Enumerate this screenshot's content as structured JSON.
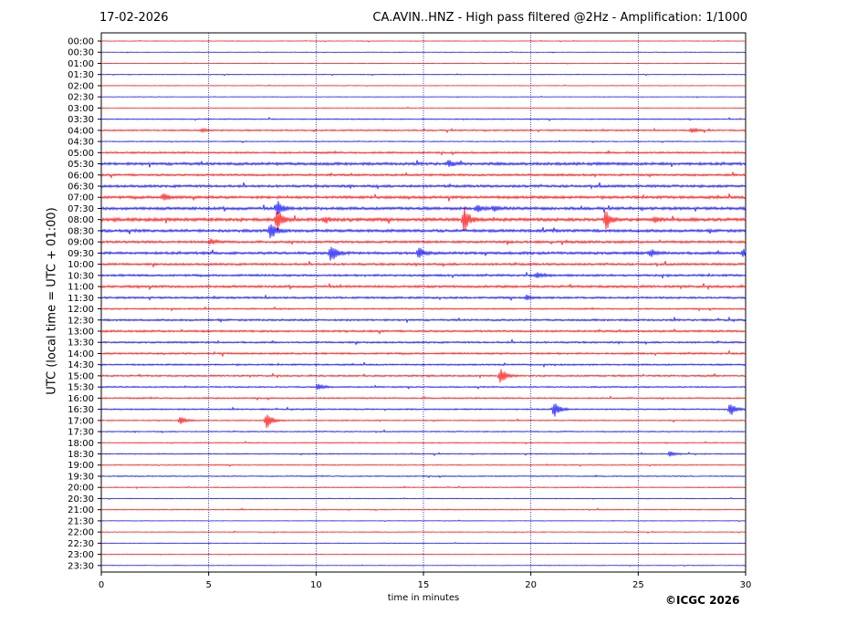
{
  "header": {
    "date": "17-02-2026",
    "title": "CA.AVIN..HNZ - High pass filtered @2Hz - Amplification: 1/1000"
  },
  "footer": {
    "copyright": "©ICGC 2026"
  },
  "colors": {
    "odd_row": "#ff0000",
    "even_row": "#0000ff",
    "grid": "#000080"
  },
  "chart_data": {
    "type": "line",
    "title": "CA.AVIN..HNZ - High pass filtered @2Hz - Amplification: 1/1000",
    "xlabel": "time in minutes",
    "ylabel": "UTC (local time = UTC + 01:00)",
    "xlim": [
      0,
      30
    ],
    "x_ticks": [
      0,
      5,
      10,
      15,
      20,
      25,
      30
    ],
    "grid": "vertical dotted at 5-minute intervals",
    "rows": [
      "00:00",
      "00:30",
      "01:00",
      "01:30",
      "02:00",
      "02:30",
      "03:00",
      "03:30",
      "04:00",
      "04:30",
      "05:00",
      "05:30",
      "06:00",
      "06:30",
      "07:00",
      "07:30",
      "08:00",
      "08:30",
      "09:00",
      "09:30",
      "10:00",
      "10:30",
      "11:00",
      "11:30",
      "12:00",
      "12:30",
      "13:00",
      "13:30",
      "14:00",
      "14:30",
      "15:00",
      "15:30",
      "16:00",
      "16:30",
      "17:00",
      "17:30",
      "18:00",
      "18:30",
      "19:00",
      "19:30",
      "20:00",
      "20:30",
      "21:00",
      "21:30",
      "22:00",
      "22:30",
      "23:00",
      "23:30"
    ],
    "row_colors": "alternating red / blue",
    "noise_levels": [
      0.3,
      0.3,
      0.3,
      0.4,
      0.3,
      0.3,
      0.3,
      0.6,
      0.8,
      0.5,
      1.0,
      1.6,
      1.2,
      1.4,
      1.5,
      1.6,
      1.8,
      1.6,
      1.3,
      1.5,
      1.2,
      1.2,
      1.3,
      1.1,
      0.8,
      1.1,
      1.1,
      1.0,
      1.0,
      0.9,
      0.9,
      0.8,
      0.8,
      0.8,
      0.6,
      0.6,
      0.5,
      0.6,
      0.5,
      0.6,
      0.5,
      0.4,
      0.5,
      0.3,
      0.4,
      0.3,
      0.3,
      0.3
    ],
    "events": [
      {
        "row": "04:00",
        "minute": 4.7,
        "amplitude": 2
      },
      {
        "row": "04:00",
        "minute": 27.5,
        "amplitude": 3
      },
      {
        "row": "05:30",
        "minute": 16.2,
        "amplitude": 4
      },
      {
        "row": "07:00",
        "minute": 2.9,
        "amplitude": 4
      },
      {
        "row": "07:30",
        "minute": 8.2,
        "amplitude": 9
      },
      {
        "row": "07:30",
        "minute": 17.5,
        "amplitude": 4
      },
      {
        "row": "07:30",
        "minute": 18.3,
        "amplitude": 3
      },
      {
        "row": "08:00",
        "minute": 8.2,
        "amplitude": 12
      },
      {
        "row": "08:00",
        "minute": 10.4,
        "amplitude": 3
      },
      {
        "row": "08:00",
        "minute": 16.9,
        "amplitude": 14
      },
      {
        "row": "08:00",
        "minute": 23.5,
        "amplitude": 10
      },
      {
        "row": "08:00",
        "minute": 25.8,
        "amplitude": 3
      },
      {
        "row": "08:30",
        "minute": 7.9,
        "amplitude": 10
      },
      {
        "row": "09:00",
        "minute": 5.1,
        "amplitude": 3
      },
      {
        "row": "09:30",
        "minute": 10.7,
        "amplitude": 11
      },
      {
        "row": "09:30",
        "minute": 14.8,
        "amplitude": 6
      },
      {
        "row": "09:30",
        "minute": 25.6,
        "amplitude": 4
      },
      {
        "row": "09:30",
        "minute": 29.9,
        "amplitude": 4
      },
      {
        "row": "10:30",
        "minute": 20.3,
        "amplitude": 3
      },
      {
        "row": "11:30",
        "minute": 19.8,
        "amplitude": 3
      },
      {
        "row": "15:00",
        "minute": 18.6,
        "amplitude": 9
      },
      {
        "row": "15:30",
        "minute": 10.1,
        "amplitude": 4
      },
      {
        "row": "16:30",
        "minute": 21.1,
        "amplitude": 9
      },
      {
        "row": "16:30",
        "minute": 29.3,
        "amplitude": 8
      },
      {
        "row": "17:00",
        "minute": 3.7,
        "amplitude": 5
      },
      {
        "row": "17:00",
        "minute": 7.7,
        "amplitude": 11
      },
      {
        "row": "18:30",
        "minute": 26.5,
        "amplitude": 3
      }
    ]
  }
}
